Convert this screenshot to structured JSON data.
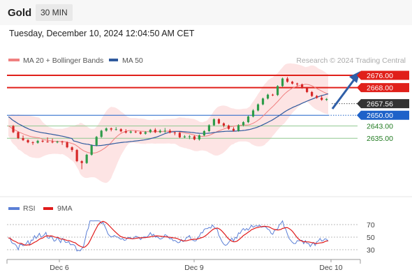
{
  "header": {
    "asset": "Gold",
    "timeframe": "30 MIN"
  },
  "datetime": "Tuesday, December 10, 2024 12:04:50 AM CET",
  "watermark": "Research © 2024 Trading Central",
  "colors": {
    "resistance": "#e0201a",
    "support": "#2a9d2a",
    "current": "#333333",
    "pivot": "#1e62c9",
    "bollinger_fill": "#fde4e4",
    "ma20": "#f08080",
    "ma50": "#2f5a9e",
    "bull_candle": "#2e9c4a",
    "bear_candle": "#d62828",
    "rsi": "#5b7fd6",
    "rsi_ma": "#e01b1b"
  },
  "chart_data": [
    {
      "type": "candlestick",
      "legend": [
        {
          "name": "MA 20 + Bollinger Bands",
          "color": "#f08080"
        },
        {
          "name": "MA 50",
          "color": "#2f5a9e"
        }
      ],
      "x_ticks": [
        "Dec 6",
        "Dec 9",
        "Dec 10"
      ],
      "levels": [
        {
          "value": 2676.0,
          "label": "2676.00",
          "role": "resistance"
        },
        {
          "value": 2668.0,
          "label": "2668.00",
          "role": "resistance"
        },
        {
          "value": 2657.56,
          "label": "2657.56",
          "role": "current"
        },
        {
          "value": 2650.0,
          "label": "2650.00",
          "role": "pivot"
        },
        {
          "value": 2643.0,
          "label": "2643.00",
          "role": "support"
        },
        {
          "value": 2635.0,
          "label": "2635.00",
          "role": "support"
        }
      ],
      "projected_target": 2676.0,
      "ylim": [
        2605,
        2684
      ]
    },
    {
      "type": "line",
      "legend": [
        {
          "name": "RSI",
          "color": "#5b7fd6"
        },
        {
          "name": "9MA",
          "color": "#e01b1b"
        }
      ],
      "y_ticks": [
        "70",
        "50",
        "30"
      ],
      "ylim": [
        20,
        80
      ]
    }
  ]
}
